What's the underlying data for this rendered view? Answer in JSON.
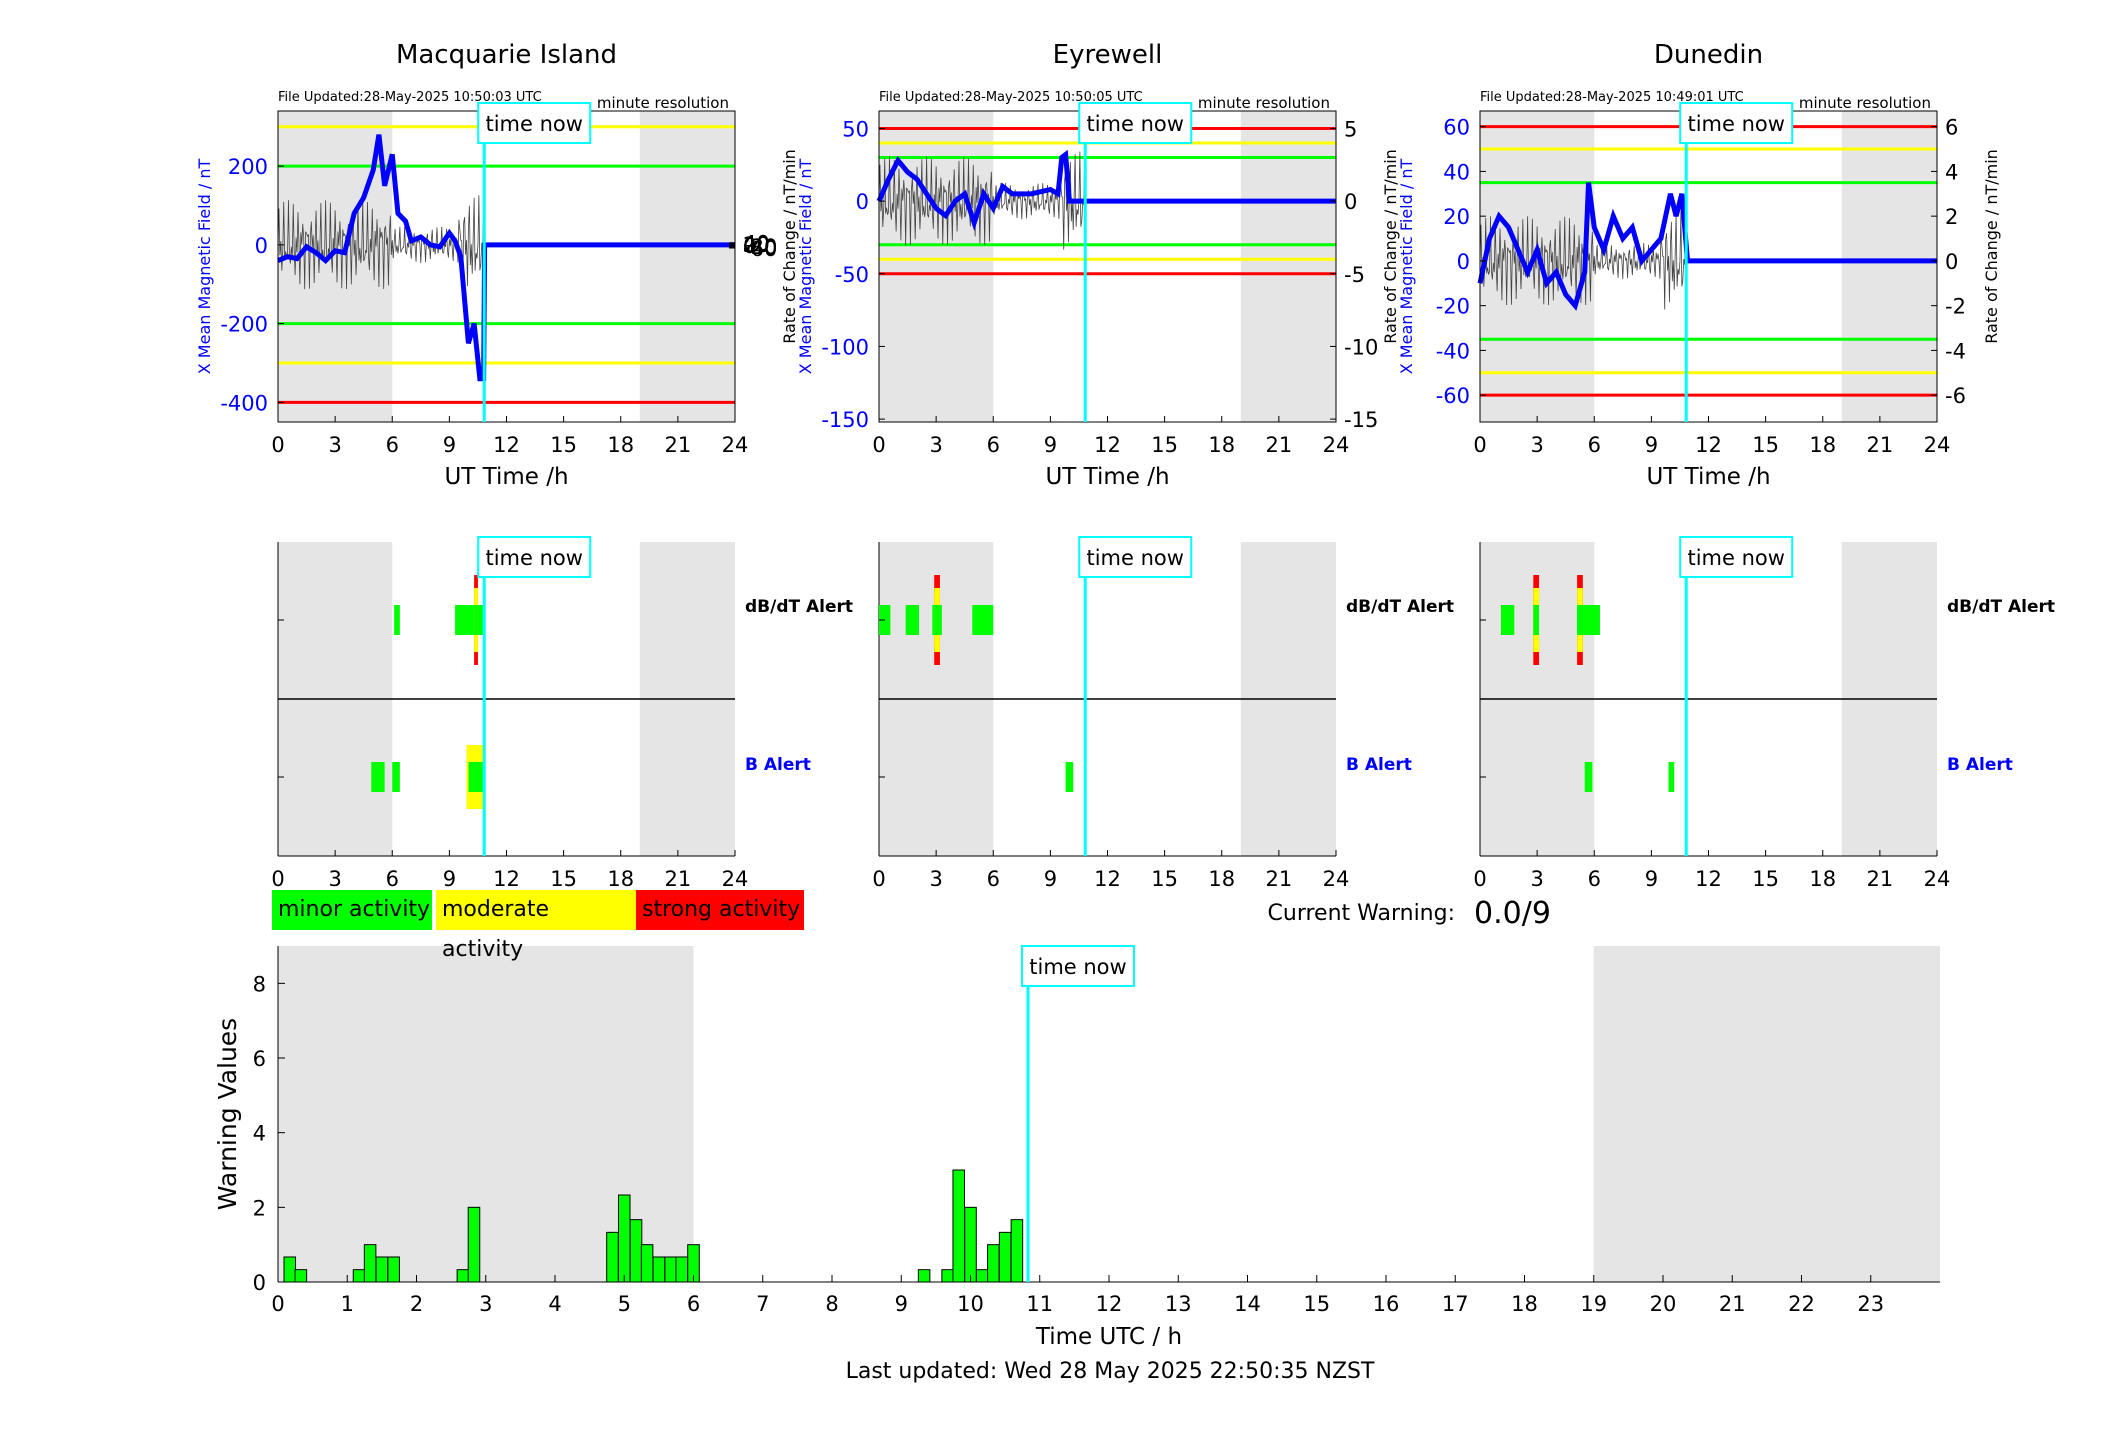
{
  "colors": {
    "minor": "#00ff00",
    "moderate": "#ffff00",
    "strong": "#ff0000",
    "time_now": "#00ffff",
    "field": "#0000ff",
    "shade": "#e5e5e5"
  },
  "stations": [
    {
      "name": "Macquarie Island",
      "file_updated": "File Updated:28-May-2025 10:50:03 UTC",
      "resolution": "minute resolution",
      "left_ylabel": "X Mean Magnetic Field / nT",
      "right_ylabel": "Rate of Change / nT/min",
      "left_ylim": [
        -450,
        340
      ],
      "left_ticks": [
        -400,
        -200,
        0,
        200
      ],
      "right_ticks": [
        -60,
        -40,
        -20,
        0,
        20,
        40
      ],
      "right_scale": 7.5,
      "thresholds": {
        "green": 200,
        "yellow": 300,
        "red": 400
      },
      "field_trace": [
        [
          0,
          -40
        ],
        [
          0.5,
          -30
        ],
        [
          1,
          -35
        ],
        [
          1.5,
          -5
        ],
        [
          2,
          -20
        ],
        [
          2.5,
          -40
        ],
        [
          3,
          -15
        ],
        [
          3.5,
          -20
        ],
        [
          4,
          80
        ],
        [
          4.5,
          120
        ],
        [
          5,
          190
        ],
        [
          5.3,
          280
        ],
        [
          5.6,
          150
        ],
        [
          6,
          230
        ],
        [
          6.3,
          80
        ],
        [
          6.7,
          60
        ],
        [
          7,
          10
        ],
        [
          7.5,
          20
        ],
        [
          8,
          0
        ],
        [
          8.5,
          -5
        ],
        [
          9,
          30
        ],
        [
          9.3,
          10
        ],
        [
          9.6,
          -30
        ],
        [
          10,
          -250
        ],
        [
          10.3,
          -200
        ],
        [
          10.6,
          -340
        ],
        [
          10.8,
          -340
        ],
        [
          10.85,
          0
        ],
        [
          24,
          0
        ]
      ],
      "dbdt_alerts": [
        [
          6.1,
          6.4,
          "minor"
        ],
        [
          9.3,
          10.8,
          "minor"
        ],
        [
          10.3,
          10.5,
          "strong"
        ]
      ],
      "b_alerts": [
        [
          4.9,
          5.6,
          "minor"
        ],
        [
          6.0,
          6.4,
          "minor"
        ],
        [
          9.9,
          10.9,
          "moderate"
        ]
      ]
    },
    {
      "name": "Eyrewell",
      "file_updated": "File Updated:28-May-2025 10:50:05 UTC",
      "resolution": "minute resolution",
      "left_ylabel": "X Mean Magnetic Field / nT",
      "right_ylabel": "Rate of Change / nT/min",
      "left_ylim": [
        -152,
        62
      ],
      "left_ticks": [
        -150,
        -100,
        -50,
        0,
        50
      ],
      "right_ticks": [
        -15,
        -10,
        -5,
        0,
        5
      ],
      "right_scale": 0.1,
      "thresholds": {
        "green": 30,
        "yellow": 40,
        "red": 50
      },
      "field_trace": [
        [
          0,
          0
        ],
        [
          0.5,
          15
        ],
        [
          1,
          28
        ],
        [
          1.5,
          20
        ],
        [
          2,
          15
        ],
        [
          2.5,
          5
        ],
        [
          3,
          -5
        ],
        [
          3.5,
          -10
        ],
        [
          4,
          0
        ],
        [
          4.5,
          5
        ],
        [
          5,
          -15
        ],
        [
          5.5,
          5
        ],
        [
          6,
          -5
        ],
        [
          6.5,
          10
        ],
        [
          7,
          5
        ],
        [
          8,
          5
        ],
        [
          9,
          8
        ],
        [
          9.4,
          5
        ],
        [
          9.6,
          30
        ],
        [
          9.8,
          32
        ],
        [
          10,
          0
        ],
        [
          24,
          0
        ]
      ],
      "dbdt_alerts": [
        [
          0,
          0.6,
          "minor"
        ],
        [
          1.4,
          2.1,
          "minor"
        ],
        [
          2.8,
          3.3,
          "minor"
        ],
        [
          2.9,
          3.2,
          "strong"
        ],
        [
          4.9,
          6.0,
          "minor"
        ]
      ],
      "b_alerts": [
        [
          9.8,
          10.2,
          "minor"
        ]
      ]
    },
    {
      "name": "Dunedin",
      "file_updated": "File Updated:28-May-2025 10:49:01 UTC",
      "resolution": "minute resolution",
      "left_ylabel": "X Mean Magnetic Field / nT",
      "right_ylabel": "Rate of Change / nT/min",
      "left_ylim": [
        -72,
        67
      ],
      "left_ticks": [
        -60,
        -40,
        -20,
        0,
        20,
        40,
        60
      ],
      "right_ticks": [
        -6,
        -4,
        -2,
        0,
        2,
        4,
        6
      ],
      "right_scale": 0.1,
      "thresholds": {
        "green": 35,
        "yellow": 50,
        "red": 60
      },
      "field_trace": [
        [
          0,
          -10
        ],
        [
          0.5,
          10
        ],
        [
          1,
          20
        ],
        [
          1.5,
          15
        ],
        [
          2,
          5
        ],
        [
          2.5,
          -5
        ],
        [
          3,
          5
        ],
        [
          3.5,
          -10
        ],
        [
          4,
          -5
        ],
        [
          4.5,
          -15
        ],
        [
          5,
          -20
        ],
        [
          5.5,
          -5
        ],
        [
          5.7,
          35
        ],
        [
          6,
          15
        ],
        [
          6.5,
          5
        ],
        [
          7,
          20
        ],
        [
          7.5,
          10
        ],
        [
          8,
          15
        ],
        [
          8.5,
          0
        ],
        [
          9,
          5
        ],
        [
          9.5,
          10
        ],
        [
          10,
          30
        ],
        [
          10.3,
          20
        ],
        [
          10.6,
          30
        ],
        [
          10.9,
          0
        ],
        [
          24,
          0
        ]
      ],
      "dbdt_alerts": [
        [
          1.1,
          1.8,
          "minor"
        ],
        [
          2.8,
          3.1,
          "strong"
        ],
        [
          5.1,
          5.4,
          "strong"
        ],
        [
          5.1,
          6.3,
          "minor"
        ]
      ],
      "b_alerts": [
        [
          5.5,
          5.9,
          "minor"
        ],
        [
          9.9,
          10.2,
          "minor"
        ]
      ]
    }
  ],
  "common": {
    "xlabel": "UT Time /h",
    "x_ticks": [
      0,
      3,
      6,
      9,
      12,
      15,
      18,
      21,
      24
    ],
    "time_now_label": "time now",
    "time_now_hour": 10.83,
    "shade_ranges": [
      [
        0,
        6
      ],
      [
        19,
        24
      ]
    ],
    "dbdt_label": "dB/dT Alert",
    "b_label": "B Alert"
  },
  "legend": {
    "minor": "minor activity",
    "moderate": "moderate activity",
    "strong": "strong activity"
  },
  "current_warning": {
    "label": "Current Warning:",
    "value": "0.0/9"
  },
  "chart_data": {
    "type": "bar",
    "title": "",
    "xlabel": "Time UTC / h",
    "ylabel": "Warning Values",
    "xlim": [
      0,
      24
    ],
    "ylim": [
      0,
      9
    ],
    "x_ticks": [
      0,
      1,
      2,
      3,
      4,
      5,
      6,
      7,
      8,
      9,
      10,
      11,
      12,
      13,
      14,
      15,
      16,
      17,
      18,
      19,
      20,
      21,
      22,
      23
    ],
    "y_ticks": [
      0,
      2,
      4,
      6,
      8
    ],
    "shade_ranges": [
      [
        0,
        6
      ],
      [
        19,
        24
      ]
    ],
    "time_now_hour": 10.83,
    "time_now_label": "time now",
    "bin_width": 0.1667,
    "x": [
      0.17,
      0.33,
      1.17,
      1.33,
      1.5,
      1.67,
      2.67,
      2.83,
      4.83,
      5.0,
      5.17,
      5.33,
      5.5,
      5.67,
      5.83,
      6.0,
      9.33,
      9.67,
      9.83,
      10.0,
      10.17,
      10.33,
      10.5,
      10.67
    ],
    "values": [
      0.67,
      0.33,
      0.33,
      1.0,
      0.67,
      0.67,
      0.33,
      2.0,
      1.33,
      2.33,
      1.67,
      1.0,
      0.67,
      0.67,
      0.67,
      1.0,
      0.33,
      0.33,
      3.0,
      2.0,
      0.33,
      1.0,
      1.33,
      1.67
    ]
  },
  "footer": "Last updated: Wed 28 May 2025 22:50:35 NZST"
}
